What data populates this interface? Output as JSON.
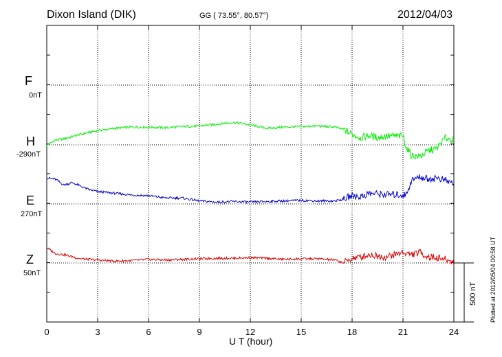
{
  "header": {
    "station": "Dixon Island (DIK)",
    "coords": "GG ( 73.55°,  80.57°)",
    "date": "2012/04/03"
  },
  "components": [
    {
      "name": "F",
      "baseline": "0nT",
      "color": "#ffa500"
    },
    {
      "name": "H",
      "baseline": "-290nT",
      "color": "#00ee00"
    },
    {
      "name": "E",
      "baseline": "270nT",
      "color": "#0000cc"
    },
    {
      "name": "Z",
      "baseline": "50nT",
      "color": "#dd0000"
    }
  ],
  "scale_bar_label": "500 nT",
  "plotted_note": "Plotted at 2012/05/04 00:58 UT",
  "chart_data": {
    "type": "line",
    "xlabel": "U T (hour)",
    "xlim": [
      0,
      24
    ],
    "x_ticks": [
      0,
      3,
      6,
      9,
      12,
      15,
      18,
      21,
      24
    ],
    "grid": true,
    "units": "nT (offset from each component's baseline)",
    "series": [
      {
        "name": "H",
        "x": [
          0,
          0.5,
          1,
          2,
          3,
          4,
          5,
          6,
          7,
          8,
          9,
          10,
          11,
          12,
          13,
          14,
          15,
          16,
          17,
          17.5,
          18,
          18.5,
          19,
          19.5,
          20,
          21,
          21.2,
          21.5,
          22,
          22.5,
          23,
          23.5,
          24
        ],
        "y": [
          -5,
          40,
          50,
          90,
          120,
          140,
          150,
          150,
          145,
          155,
          160,
          175,
          190,
          170,
          140,
          150,
          155,
          160,
          150,
          130,
          90,
          60,
          80,
          60,
          75,
          75,
          -20,
          -90,
          -100,
          -50,
          -30,
          60,
          40
        ]
      },
      {
        "name": "E",
        "x": [
          0,
          0.5,
          1,
          1.5,
          2,
          2.5,
          3,
          4,
          5,
          6,
          7,
          8,
          9,
          10,
          11,
          12,
          13,
          14,
          15,
          16,
          17,
          17.5,
          18,
          18.5,
          19,
          20,
          21,
          21.2,
          21.5,
          22,
          22.5,
          23,
          23.5,
          24
        ],
        "y": [
          220,
          210,
          160,
          180,
          150,
          120,
          105,
          90,
          75,
          70,
          50,
          50,
          25,
          15,
          20,
          15,
          20,
          25,
          30,
          25,
          25,
          40,
          70,
          60,
          90,
          80,
          75,
          80,
          200,
          230,
          210,
          220,
          200,
          170
        ]
      },
      {
        "name": "Z",
        "x": [
          0,
          0.5,
          1,
          2,
          3,
          4,
          5,
          6,
          7,
          8,
          9,
          10,
          11,
          12,
          13,
          14,
          15,
          16,
          17,
          17.5,
          18,
          18.5,
          19,
          20,
          21,
          21.5,
          22,
          22.5,
          23,
          23.5,
          24
        ],
        "y": [
          130,
          80,
          70,
          35,
          25,
          15,
          20,
          30,
          25,
          30,
          35,
          40,
          40,
          45,
          40,
          30,
          35,
          35,
          25,
          0,
          40,
          50,
          70,
          50,
          90,
          70,
          90,
          50,
          45,
          30,
          5
        ]
      }
    ]
  }
}
